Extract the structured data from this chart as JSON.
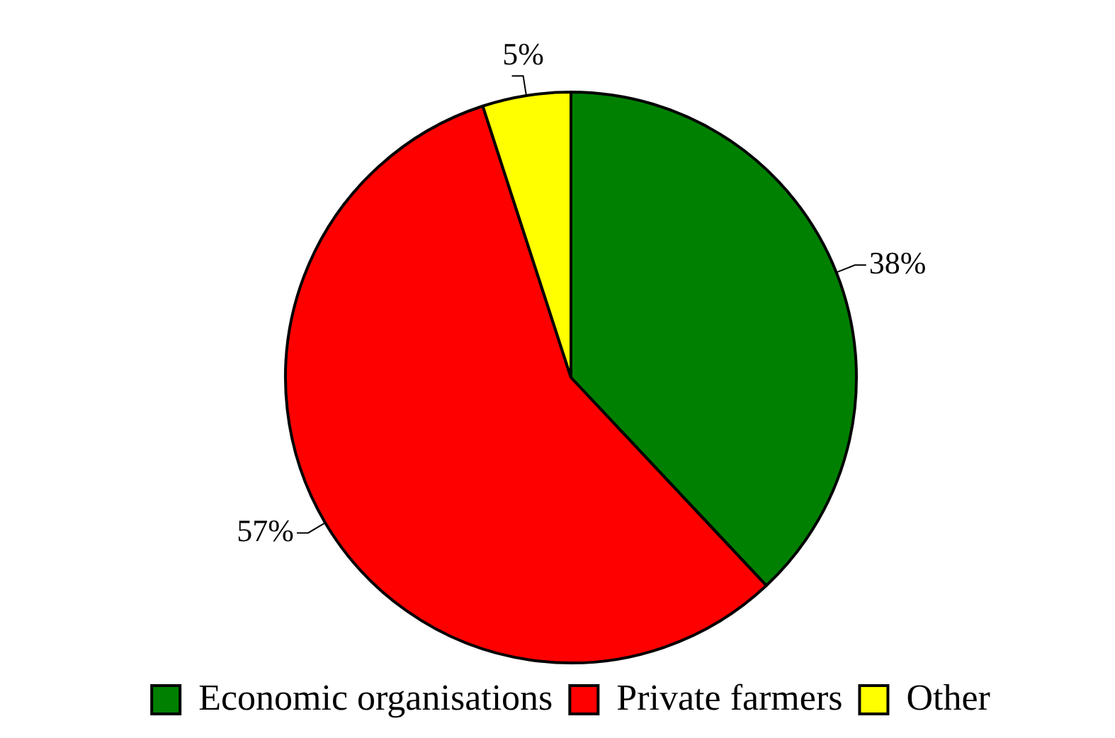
{
  "chart_data": {
    "type": "pie",
    "categories": [
      "Economic organisations",
      "Private farmers",
      "Other"
    ],
    "values": [
      38,
      57,
      5
    ],
    "colors": [
      "#008000",
      "#ff0000",
      "#ffff00"
    ],
    "value_labels": [
      "38%",
      "57%",
      "5%"
    ],
    "legend": "bottom"
  }
}
